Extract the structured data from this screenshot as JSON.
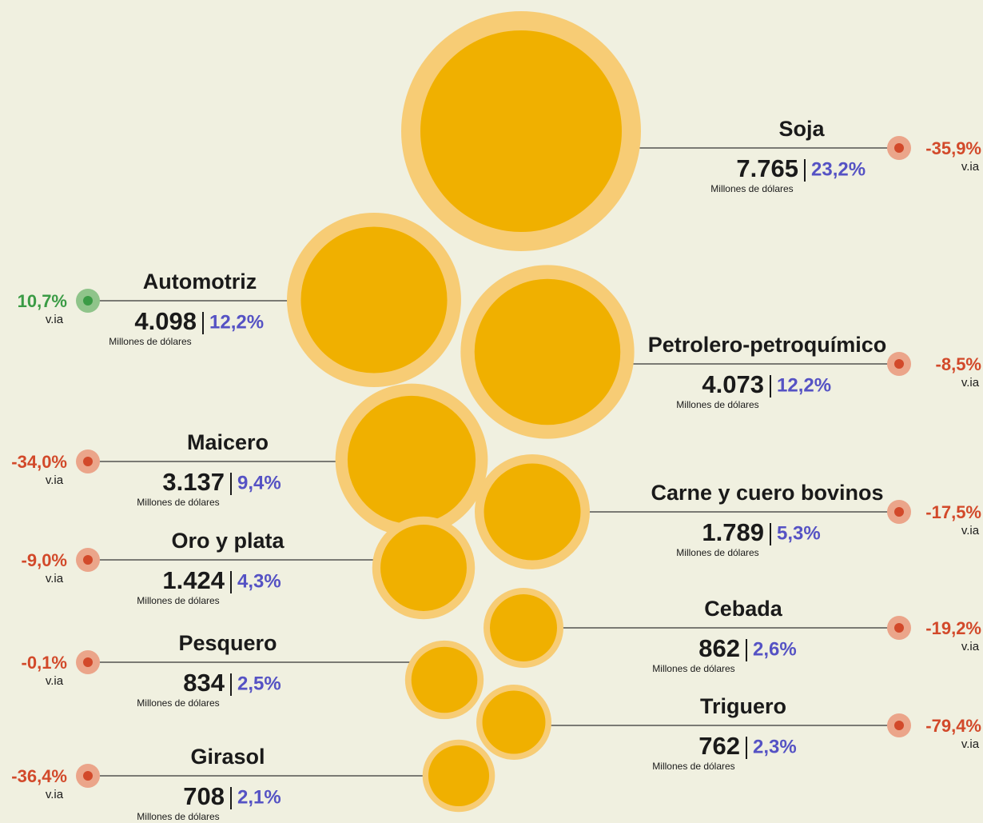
{
  "chart_data": {
    "type": "bubble",
    "categories": [
      "Soja",
      "Automotriz",
      "Petrolero-petroquímico",
      "Maicero",
      "Carne y cuero bovinos",
      "Oro y plata",
      "Cebada",
      "Pesquero",
      "Triguero",
      "Girasol"
    ],
    "values": [
      7765,
      4098,
      4073,
      3137,
      1789,
      1424,
      862,
      834,
      762,
      708
    ],
    "value_labels": [
      "7.765",
      "4.098",
      "4.073",
      "3.137",
      "1.789",
      "1.424",
      "862",
      "834",
      "762",
      "708"
    ],
    "shares": [
      23.2,
      12.2,
      12.2,
      9.4,
      5.3,
      4.3,
      2.6,
      2.5,
      2.3,
      2.1
    ],
    "share_labels": [
      "23,2%",
      "12,2%",
      "12,2%",
      "9,4%",
      "5,3%",
      "4,3%",
      "2,6%",
      "2,5%",
      "2,3%",
      "2,1%"
    ],
    "changes": [
      -35.9,
      10.7,
      -8.5,
      -34.0,
      -17.5,
      -9.0,
      -19.2,
      -0.1,
      -79.4,
      -36.4
    ],
    "change_labels": [
      "-35,9%",
      "10,7%",
      "-8,5%",
      "-34,0%",
      "-17,5%",
      "-9,0%",
      "-19,2%",
      "-0,1%",
      "-79,4%",
      "-36,4%"
    ],
    "unit_label": "Millones de dólares",
    "change_period_label": "v.ia",
    "bubble_color": "#f0b000",
    "bubble_ring_color": "#f7cc75",
    "positive_color": "#3a9b45",
    "negative_color": "#d2492a",
    "positive_dot_color": "#8fc48a",
    "negative_dot_color": "#eba58a"
  }
}
